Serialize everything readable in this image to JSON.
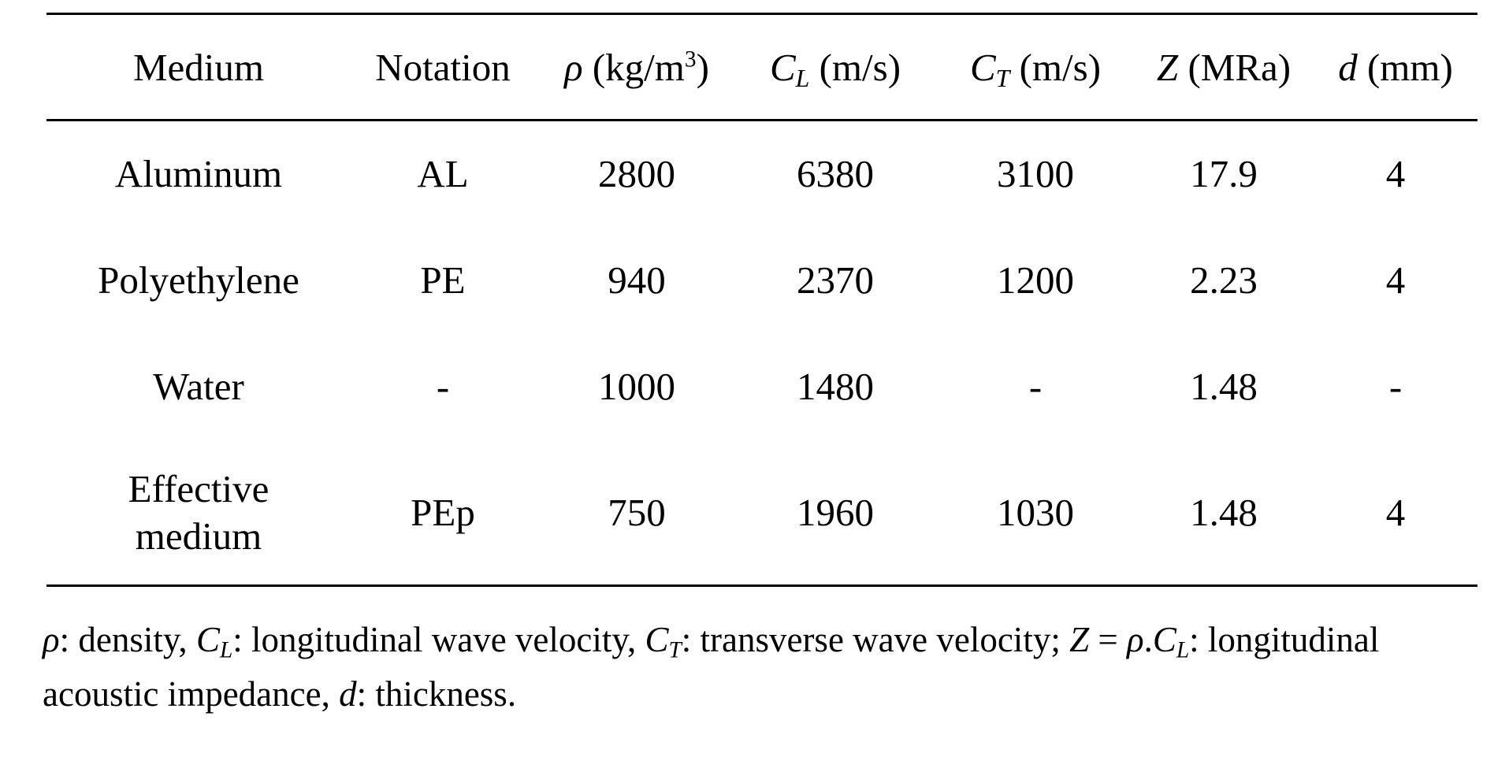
{
  "table": {
    "header": [
      [
        {
          "text": "Medium"
        }
      ],
      [
        {
          "text": "Notation"
        }
      ],
      [
        {
          "text": "ρ",
          "style": "i"
        },
        {
          "text": " (kg/m"
        },
        {
          "text": "3",
          "style": "sup"
        },
        {
          "text": ")"
        }
      ],
      [
        {
          "text": "C",
          "style": "i"
        },
        {
          "text": "L",
          "style": "isub"
        },
        {
          "text": " (m/s)"
        }
      ],
      [
        {
          "text": "C",
          "style": "i"
        },
        {
          "text": "T",
          "style": "isub"
        },
        {
          "text": " (m/s)"
        }
      ],
      [
        {
          "text": "Z",
          "style": "i"
        },
        {
          "text": " (MRa)"
        }
      ],
      [
        {
          "text": "d",
          "style": "i"
        },
        {
          "text": " (mm)"
        }
      ]
    ],
    "rows": [
      [
        "Aluminum",
        "AL",
        2800,
        6380,
        3100,
        17.9,
        4
      ],
      [
        "Polyethylene",
        "PE",
        940,
        2370,
        1200,
        2.23,
        4
      ],
      [
        "Water",
        "-",
        1000,
        1480,
        "-",
        1.48,
        "-"
      ],
      [
        "Effective medium",
        "PEp",
        750,
        1960,
        1030,
        1.48,
        4
      ]
    ]
  },
  "footnote": [
    {
      "text": "ρ",
      "style": "i"
    },
    {
      "text": ": density, "
    },
    {
      "text": "C",
      "style": "i"
    },
    {
      "text": "L",
      "style": "isub"
    },
    {
      "text": ": longitudinal wave velocity, "
    },
    {
      "text": "C",
      "style": "i"
    },
    {
      "text": "T",
      "style": "isub"
    },
    {
      "text": ": transverse wave velocity; "
    },
    {
      "text": "Z",
      "style": "i"
    },
    {
      "text": " = "
    },
    {
      "text": "ρ",
      "style": "i"
    },
    {
      "text": "."
    },
    {
      "text": "C",
      "style": "i"
    },
    {
      "text": "L",
      "style": "isub"
    },
    {
      "text": ": longitudinal acoustic impedance, "
    },
    {
      "text": "d",
      "style": "i"
    },
    {
      "text": ": thickness."
    }
  ]
}
